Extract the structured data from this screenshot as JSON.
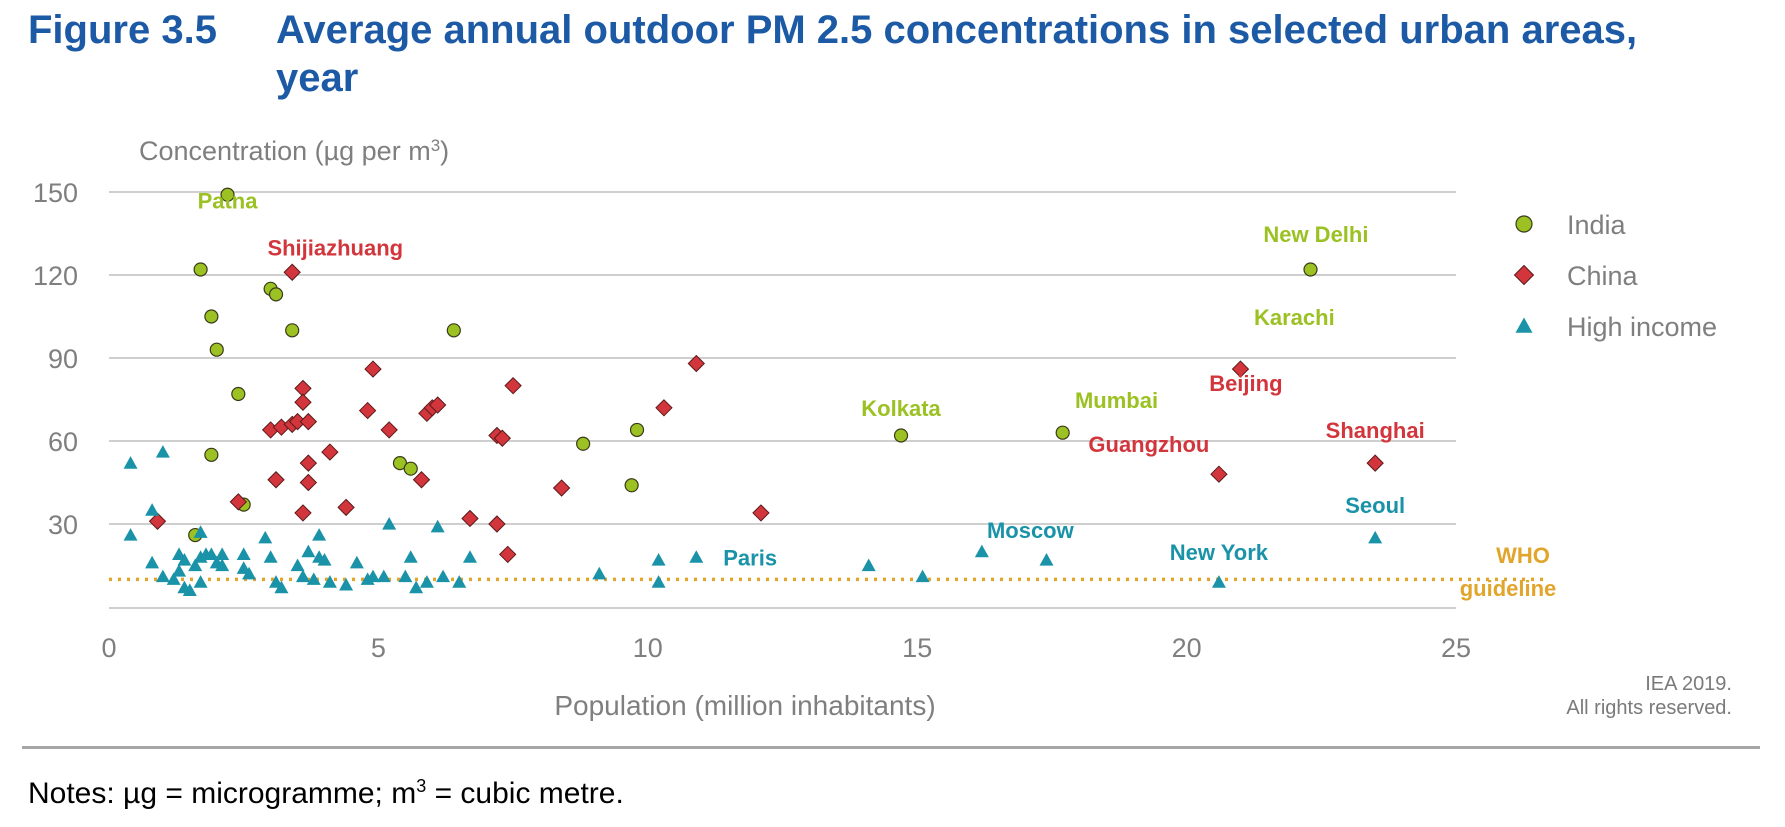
{
  "figure": {
    "number": "Figure 3.5",
    "title": "Average annual outdoor PM 2.5 concentrations in selected urban areas, year"
  },
  "credit": {
    "line1": "IEA 2019.",
    "line2": "All rights reserved."
  },
  "notes": {
    "prefix": "Notes: µg = microgramme; m",
    "sup": "3",
    "suffix": " = cubic metre."
  },
  "colors": {
    "india": "#9bc122",
    "china": "#d2363c",
    "high_income": "#1a93a8",
    "who": "#e2a52b",
    "title": "#1d5aa6",
    "grid": "#bfbfbf",
    "axis_text": "#7f7f7f"
  },
  "chart_data": {
    "type": "scatter",
    "ylabel": "Concentration (µg per m",
    "ylabel_sup": "3",
    "ylabel_end": ")",
    "xlabel": "Population (million inhabitants)",
    "xlim": [
      0,
      25
    ],
    "ylim": [
      0,
      150
    ],
    "x_ticks": [
      "0",
      "5",
      "10",
      "15",
      "20",
      "25"
    ],
    "y_ticks": [
      "30",
      "60",
      "90",
      "120",
      "150"
    ],
    "grid": "horizontal",
    "legend_position": "right",
    "who_guideline": {
      "label_line1": "WHO",
      "label_line2": "guideline",
      "value": 10
    },
    "series": [
      {
        "name": "India",
        "marker": "circle",
        "color": "#9bc122",
        "points": [
          [
            2.2,
            149
          ],
          [
            1.7,
            122
          ],
          [
            1.9,
            105
          ],
          [
            2.0,
            93
          ],
          [
            2.4,
            77
          ],
          [
            1.9,
            55
          ],
          [
            1.6,
            26
          ],
          [
            2.5,
            37
          ],
          [
            3.0,
            115
          ],
          [
            3.1,
            113
          ],
          [
            3.4,
            100
          ],
          [
            6.4,
            100
          ],
          [
            5.4,
            52
          ],
          [
            5.6,
            50
          ],
          [
            8.8,
            59
          ],
          [
            9.8,
            64
          ],
          [
            9.7,
            44
          ],
          [
            14.7,
            62
          ],
          [
            17.7,
            63
          ],
          [
            22.3,
            122
          ]
        ]
      },
      {
        "name": "China",
        "marker": "diamond",
        "color": "#d2363c",
        "points": [
          [
            0.9,
            31
          ],
          [
            3.4,
            121
          ],
          [
            4.9,
            86
          ],
          [
            3.6,
            79
          ],
          [
            3.6,
            74
          ],
          [
            3.0,
            64
          ],
          [
            3.2,
            65
          ],
          [
            3.4,
            66
          ],
          [
            3.5,
            67
          ],
          [
            3.7,
            67
          ],
          [
            4.1,
            56
          ],
          [
            3.7,
            52
          ],
          [
            3.1,
            46
          ],
          [
            3.7,
            45
          ],
          [
            3.6,
            34
          ],
          [
            2.4,
            38
          ],
          [
            4.4,
            36
          ],
          [
            4.8,
            71
          ],
          [
            5.2,
            64
          ],
          [
            5.9,
            70
          ],
          [
            6.0,
            72
          ],
          [
            6.1,
            73
          ],
          [
            5.8,
            46
          ],
          [
            6.7,
            32
          ],
          [
            7.2,
            62
          ],
          [
            7.3,
            61
          ],
          [
            7.5,
            80
          ],
          [
            7.2,
            30
          ],
          [
            7.4,
            19
          ],
          [
            8.4,
            43
          ],
          [
            10.3,
            72
          ],
          [
            10.9,
            88
          ],
          [
            12.1,
            34
          ],
          [
            20.6,
            48
          ],
          [
            21.0,
            86
          ],
          [
            23.5,
            52
          ]
        ]
      },
      {
        "name": "High income",
        "marker": "triangle",
        "color": "#1a93a8",
        "points": [
          [
            0.4,
            52
          ],
          [
            1.0,
            56
          ],
          [
            0.4,
            26
          ],
          [
            0.8,
            35
          ],
          [
            0.8,
            16
          ],
          [
            1.0,
            11
          ],
          [
            1.2,
            10
          ],
          [
            1.3,
            13
          ],
          [
            1.3,
            19
          ],
          [
            1.4,
            17
          ],
          [
            1.4,
            7
          ],
          [
            1.5,
            6
          ],
          [
            1.6,
            15
          ],
          [
            1.7,
            18
          ],
          [
            1.7,
            9
          ],
          [
            1.7,
            27
          ],
          [
            1.8,
            19
          ],
          [
            1.9,
            19
          ],
          [
            2.0,
            16
          ],
          [
            2.1,
            19
          ],
          [
            2.1,
            15
          ],
          [
            2.5,
            19
          ],
          [
            2.5,
            14
          ],
          [
            2.6,
            12
          ],
          [
            2.9,
            25
          ],
          [
            3.0,
            18
          ],
          [
            3.1,
            9
          ],
          [
            3.2,
            7
          ],
          [
            3.5,
            15
          ],
          [
            3.6,
            11
          ],
          [
            3.7,
            20
          ],
          [
            3.8,
            10
          ],
          [
            3.9,
            26
          ],
          [
            3.9,
            18
          ],
          [
            4.0,
            17
          ],
          [
            4.1,
            9
          ],
          [
            4.4,
            8
          ],
          [
            4.6,
            16
          ],
          [
            4.8,
            10
          ],
          [
            4.9,
            11
          ],
          [
            5.1,
            11
          ],
          [
            5.2,
            30
          ],
          [
            5.5,
            11
          ],
          [
            5.6,
            18
          ],
          [
            5.7,
            7
          ],
          [
            5.9,
            9
          ],
          [
            6.1,
            29
          ],
          [
            6.2,
            11
          ],
          [
            6.5,
            9
          ],
          [
            6.7,
            18
          ],
          [
            9.1,
            12
          ],
          [
            10.2,
            17
          ],
          [
            10.2,
            9
          ],
          [
            10.9,
            18
          ],
          [
            14.1,
            15
          ],
          [
            15.1,
            11
          ],
          [
            16.2,
            20
          ],
          [
            17.4,
            17
          ],
          [
            20.6,
            9
          ],
          [
            23.5,
            25
          ]
        ]
      }
    ],
    "annotations": [
      {
        "text": "Patna",
        "series": "India",
        "x": 2.2,
        "y": 144
      },
      {
        "text": "Shijiazhuang",
        "series": "China",
        "x": 4.2,
        "y": 127
      },
      {
        "text": "New Delhi",
        "series": "India",
        "x": 22.4,
        "y": 132
      },
      {
        "text": "Karachi",
        "series": "India",
        "x": 22.0,
        "y": 102
      },
      {
        "text": "Beijing",
        "series": "China",
        "x": 21.1,
        "y": 78
      },
      {
        "text": "Kolkata",
        "series": "India",
        "x": 14.7,
        "y": 69
      },
      {
        "text": "Mumbai",
        "series": "India",
        "x": 18.7,
        "y": 72
      },
      {
        "text": "Shanghai",
        "series": "China",
        "x": 23.5,
        "y": 61
      },
      {
        "text": "Guangzhou",
        "series": "China",
        "x": 19.3,
        "y": 56
      },
      {
        "text": "Seoul",
        "series": "High income",
        "x": 23.5,
        "y": 34
      },
      {
        "text": "Moscow",
        "series": "High income",
        "x": 17.1,
        "y": 25
      },
      {
        "text": "New York",
        "series": "High income",
        "x": 20.6,
        "y": 17
      },
      {
        "text": "Paris",
        "series": "High income",
        "x": 11.9,
        "y": 15
      }
    ]
  }
}
